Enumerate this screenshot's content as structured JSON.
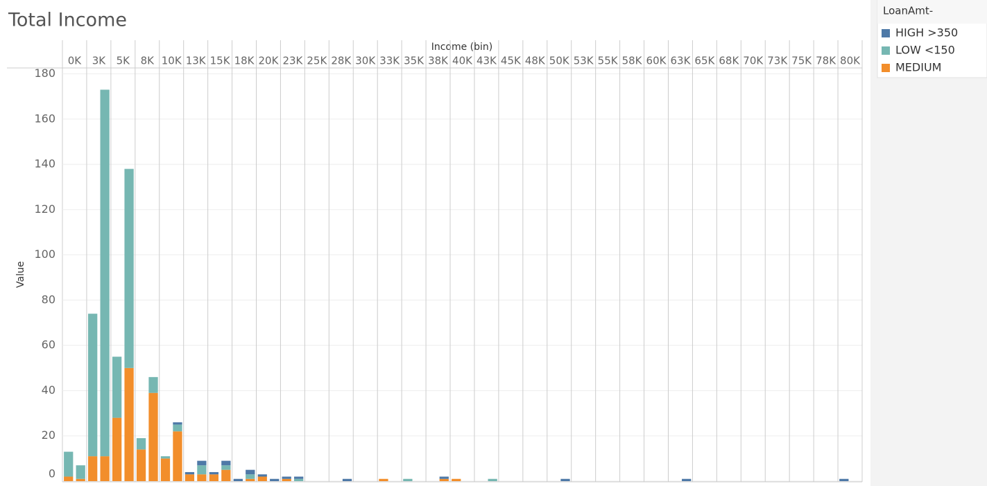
{
  "chart_data": {
    "type": "stacked-bar",
    "title": "Total Income",
    "x_label": "Income (bin)",
    "y_label": "Value",
    "legend_title": "LoanAmt-",
    "categories": [
      "0K",
      null,
      "3K",
      null,
      "5K",
      null,
      "8K",
      null,
      "10K",
      null,
      "13K",
      null,
      "15K",
      null,
      "18K",
      null,
      "20K",
      null,
      "23K",
      null,
      "25K",
      null,
      "28K",
      null,
      "30K",
      null,
      "33K",
      null,
      "35K",
      null,
      "38K",
      null,
      "40K",
      null,
      "43K",
      null,
      "45K",
      null,
      "48K",
      null,
      "50K",
      null,
      "53K",
      null,
      "55K",
      null,
      "58K",
      null,
      "60K",
      null,
      "63K",
      null,
      "65K",
      null,
      "68K",
      null,
      "70K",
      null,
      "73K",
      null,
      "75K",
      null,
      "78K",
      null,
      "80K",
      null
    ],
    "series": [
      {
        "name": "HIGH >350",
        "color": "#4e79a7",
        "values": [
          0,
          0,
          0,
          0,
          0,
          0,
          0,
          0,
          0,
          1,
          1,
          2,
          1,
          2,
          1,
          2,
          1,
          1,
          1,
          1,
          0,
          0,
          0,
          1,
          0,
          0,
          0,
          0,
          0,
          0,
          0,
          1,
          0,
          0,
          0,
          0,
          0,
          0,
          0,
          0,
          0,
          1,
          0,
          0,
          0,
          0,
          0,
          0,
          0,
          0,
          0,
          1,
          0,
          0,
          0,
          0,
          0,
          0,
          0,
          0,
          0,
          0,
          0,
          0,
          1,
          0
        ]
      },
      {
        "name": "LOW <150",
        "color": "#76b7b2",
        "values": [
          11,
          6,
          63,
          162,
          27,
          88,
          5,
          7,
          1,
          3,
          0,
          4,
          0,
          2,
          0,
          2,
          0,
          0,
          0,
          1,
          0,
          0,
          0,
          0,
          0,
          0,
          0,
          0,
          1,
          0,
          0,
          0,
          0,
          0,
          0,
          1,
          0,
          0,
          0,
          0,
          0,
          0,
          0,
          0,
          0,
          0,
          0,
          0,
          0,
          0,
          0,
          0,
          0,
          0,
          0,
          0,
          0,
          0,
          0,
          0,
          0,
          0,
          0,
          0,
          0,
          0
        ]
      },
      {
        "name": "MEDIUM",
        "color": "#f28e2b",
        "values": [
          2,
          1,
          11,
          11,
          28,
          50,
          14,
          39,
          10,
          22,
          3,
          3,
          3,
          5,
          0,
          1,
          2,
          0,
          1,
          0,
          0,
          0,
          0,
          0,
          0,
          0,
          1,
          0,
          0,
          0,
          0,
          1,
          1,
          0,
          0,
          0,
          0,
          0,
          0,
          0,
          0,
          0,
          0,
          0,
          0,
          0,
          0,
          0,
          0,
          0,
          0,
          0,
          0,
          0,
          0,
          0,
          0,
          0,
          0,
          0,
          0,
          0,
          0,
          0,
          0,
          0
        ]
      }
    ],
    "stack_order": [
      "MEDIUM",
      "LOW <150",
      "HIGH >350"
    ],
    "ylim": [
      0,
      182
    ],
    "yticks": [
      0,
      20,
      40,
      60,
      80,
      100,
      120,
      140,
      160,
      180
    ],
    "grid": true
  }
}
